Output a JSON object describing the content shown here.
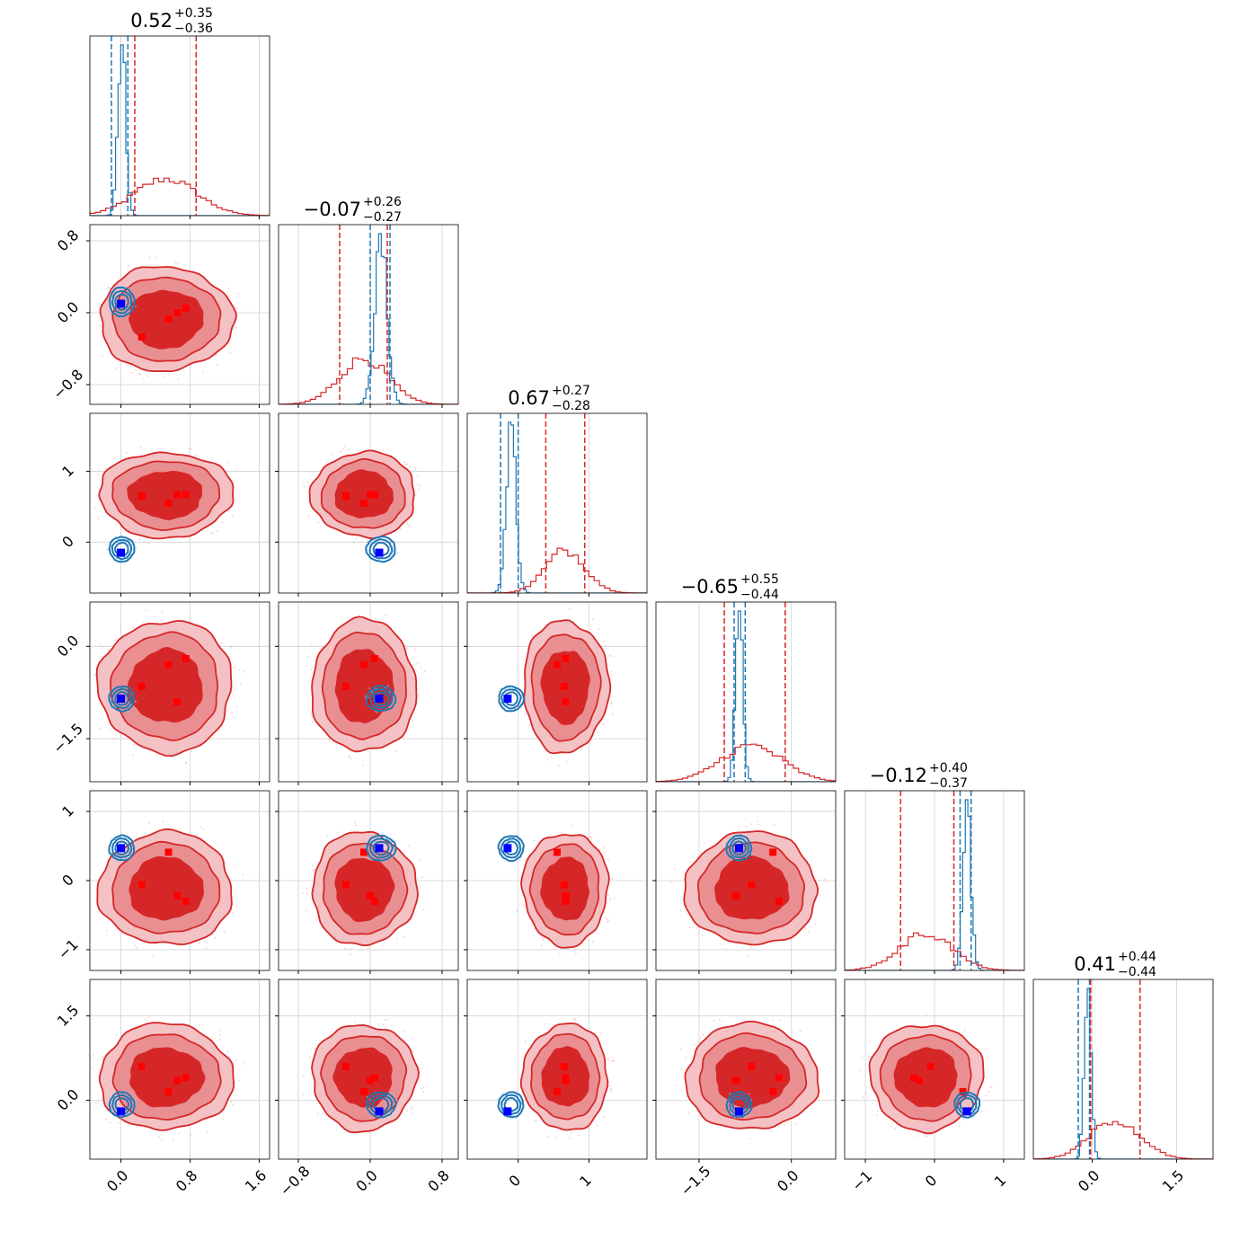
{
  "chart_data": {
    "type": "corner",
    "title": "",
    "colors": {
      "red": "#d62728",
      "blue": "#1f77b4",
      "truth_blue": "#0000ff",
      "truth_red": "#ff0000",
      "grid": "#d0d0d0"
    },
    "series": [
      {
        "color": "red"
      },
      {
        "color": "blue"
      }
    ],
    "dims": [
      {
        "range": [
          -0.36,
          1.72
        ],
        "ticks": [
          0.0,
          0.8,
          1.6
        ],
        "tick_labels": [
          "0.0",
          "0.8",
          "1.6"
        ],
        "title": {
          "value": "0.52",
          "plus": "+0.35",
          "minus": "−0.36"
        },
        "red": {
          "mean": 0.52,
          "sd": 0.36,
          "q": [
            0.16,
            0.87
          ]
        },
        "blue": {
          "mean": 0.01,
          "sd": 0.045,
          "q": [
            -0.11,
            0.08
          ]
        }
      },
      {
        "range": [
          -1.02,
          0.98
        ],
        "ticks": [
          -0.8,
          0.0,
          0.8
        ],
        "tick_labels": [
          "−0.8",
          "0.0",
          "0.8"
        ],
        "title": {
          "value": "−0.07",
          "plus": "+0.26",
          "minus": "−0.27"
        },
        "red": {
          "mean": -0.07,
          "sd": 0.27,
          "q": [
            -0.34,
            0.19
          ]
        },
        "blue": {
          "mean": 0.12,
          "sd": 0.07,
          "q": [
            0.0,
            0.22
          ]
        }
      },
      {
        "range": [
          -0.72,
          1.82
        ],
        "ticks": [
          0,
          1
        ],
        "tick_labels": [
          "0",
          "1"
        ],
        "title": {
          "value": "0.67",
          "plus": "+0.27",
          "minus": "−0.28"
        },
        "red": {
          "mean": 0.67,
          "sd": 0.28,
          "q": [
            0.39,
            0.94
          ]
        },
        "blue": {
          "mean": -0.1,
          "sd": 0.07,
          "q": [
            -0.25,
            0.0
          ]
        }
      },
      {
        "range": [
          -2.2,
          0.72
        ],
        "ticks": [
          -1.5,
          0.0
        ],
        "tick_labels": [
          "−1.5",
          "0.0"
        ],
        "title": {
          "value": "−0.65",
          "plus": "+0.55",
          "minus": "−0.44"
        },
        "red": {
          "mean": -0.65,
          "sd": 0.5,
          "q": [
            -1.09,
            -0.1
          ]
        },
        "blue": {
          "mean": -0.85,
          "sd": 0.06,
          "q": [
            -0.93,
            -0.75
          ]
        }
      },
      {
        "range": [
          -1.3,
          1.3
        ],
        "ticks": [
          -1,
          0,
          1
        ],
        "tick_labels": [
          "−1",
          "0",
          "1"
        ],
        "title": {
          "value": "−0.12",
          "plus": "+0.40",
          "minus": "−0.37"
        },
        "red": {
          "mean": -0.12,
          "sd": 0.38,
          "q": [
            -0.49,
            0.28
          ]
        },
        "blue": {
          "mean": 0.47,
          "sd": 0.06,
          "q": [
            0.37,
            0.53
          ]
        }
      },
      {
        "range": [
          -1.05,
          2.15
        ],
        "ticks": [
          0.0,
          1.5
        ],
        "tick_labels": [
          "0.0",
          "1.5"
        ],
        "title": {
          "value": "0.41",
          "plus": "+0.44",
          "minus": "−0.44"
        },
        "red": {
          "mean": 0.41,
          "sd": 0.44,
          "q": [
            -0.03,
            0.85
          ]
        },
        "blue": {
          "mean": -0.08,
          "sd": 0.06,
          "q": [
            -0.25,
            -0.05
          ]
        }
      }
    ],
    "blue_truth": [
      0.0,
      0.1,
      -0.15,
      -0.85,
      0.47,
      -0.2
    ],
    "red_markers": [
      [
        0.24,
        -0.27,
        0.65,
        -0.65,
        -0.06,
        0.6
      ],
      [
        0.55,
        -0.07,
        0.55,
        -0.3,
        0.41,
        0.15
      ],
      [
        0.65,
        0.0,
        0.67,
        -0.9,
        -0.22,
        0.35
      ],
      [
        0.75,
        0.05,
        0.67,
        -0.2,
        -0.3,
        0.4
      ]
    ],
    "grid": true
  }
}
